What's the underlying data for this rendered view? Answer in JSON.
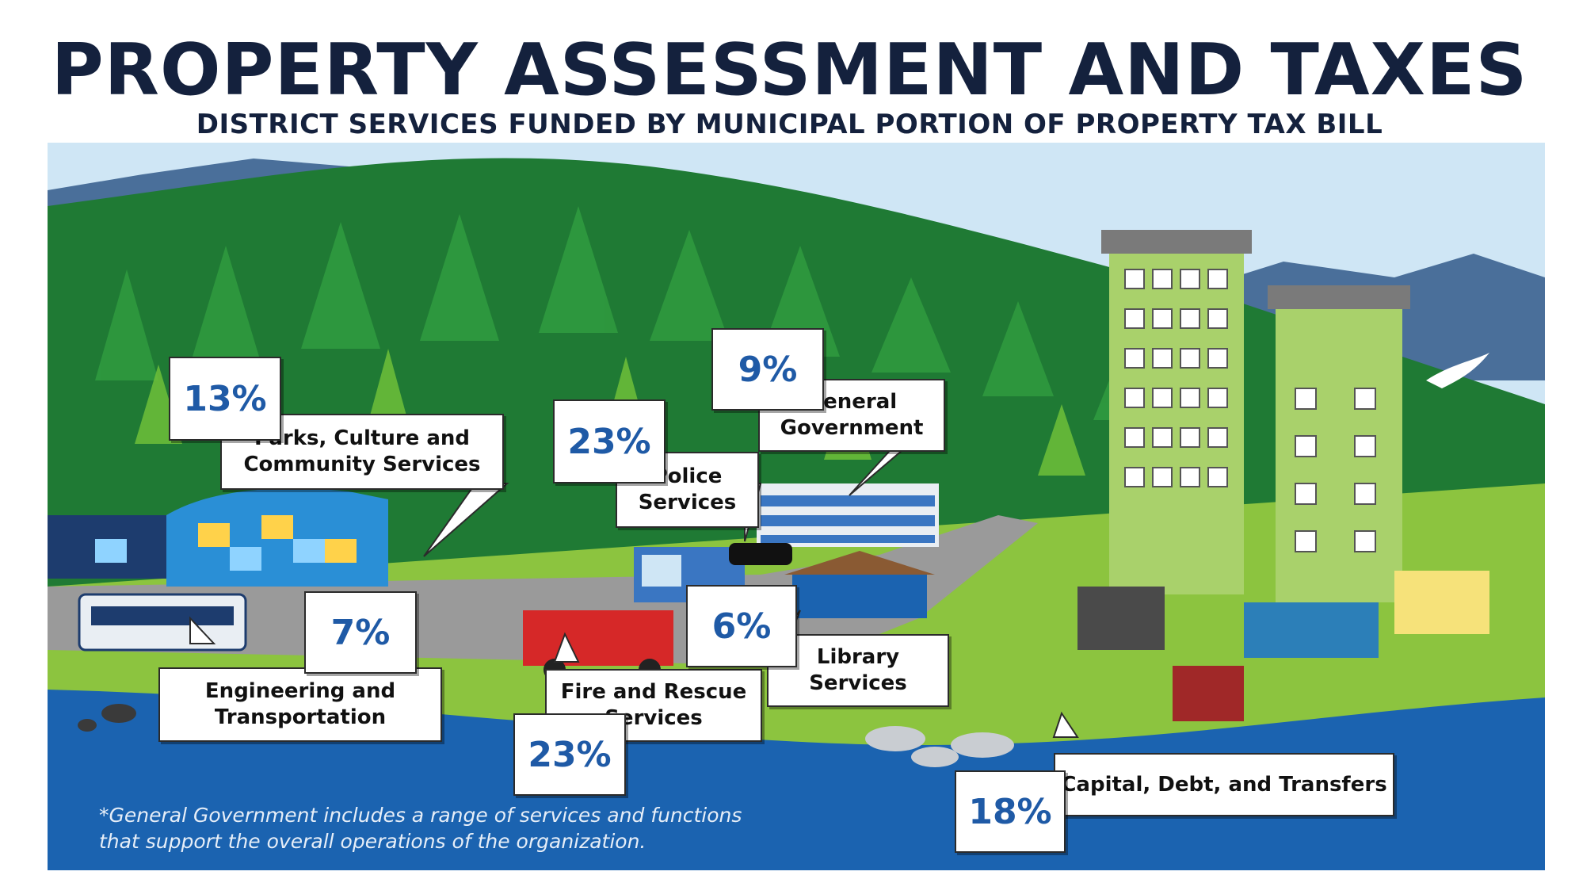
{
  "title": "PROPERTY ASSESSMENT AND TAXES",
  "subtitle": "DISTRICT SERVICES FUNDED BY MUNICIPAL PORTION OF PROPERTY TAX BILL",
  "colors": {
    "title": "#14213d",
    "percent": "#1f5aa6",
    "sky": "#cfe6f5",
    "forest": "#1f7a34",
    "grass": "#8cc43f",
    "water": "#1b63b0"
  },
  "services": {
    "parks": {
      "percent": "13%",
      "label": "Parks, Culture and\nCommunity Services"
    },
    "police": {
      "percent": "23%",
      "label": "Police\nServices"
    },
    "general": {
      "percent": "9%",
      "label": "General\nGovernment"
    },
    "engineering": {
      "percent": "7%",
      "label": "Engineering and\nTransportation"
    },
    "fire": {
      "percent": "23%",
      "label": "Fire and Rescue\nServices"
    },
    "library": {
      "percent": "6%",
      "label": "Library\nServices"
    },
    "capital": {
      "percent": "18%",
      "label": "Capital, Debt, and Transfers"
    }
  },
  "footnote": "*General Government includes a range of services and functions\n that support the overall operations of the organization."
}
